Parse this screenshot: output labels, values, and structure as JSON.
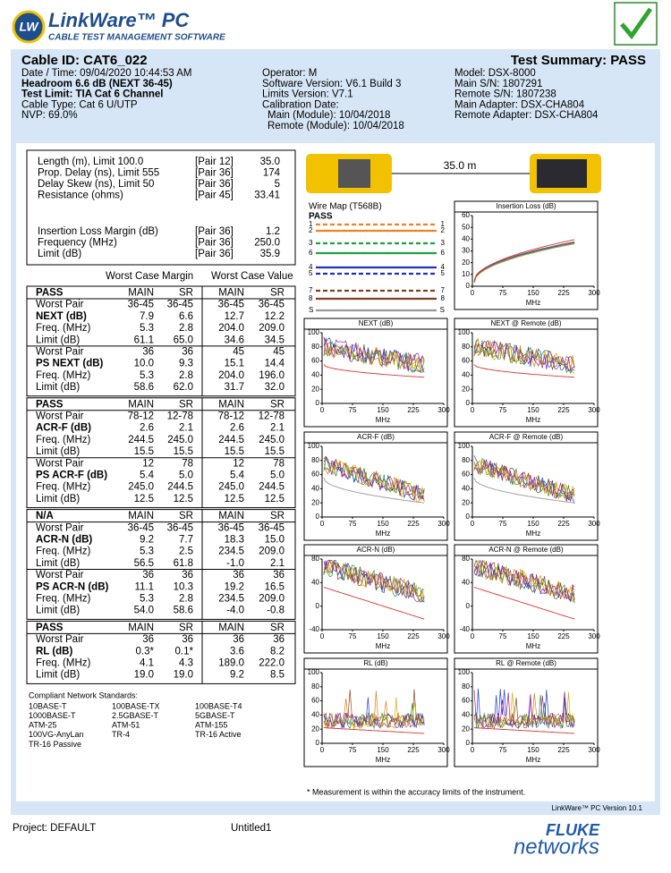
{
  "header": {
    "logo_badge": "LW",
    "logo": "LinkWare™ PC",
    "tagline": "CABLE TEST MANAGEMENT SOFTWARE"
  },
  "summary": {
    "cable_id": "Cable ID: CAT6_022",
    "result": "Test Summary: PASS",
    "col1": [
      "Date / Time: 09/04/2020  10:44:53 AM",
      "Headroom 6.6 dB (NEXT 36-45)",
      "Test Limit: TIA Cat 6 Channel",
      "Cable Type: Cat 6 U/UTP",
      "NVP: 69.0%"
    ],
    "col2": [
      "Operator: M",
      "Software Version: V6.1 Build 3",
      "Limits Version: V7.1",
      "Calibration Date:",
      "Main (Module): 10/04/2018",
      "Remote (Module): 10/04/2018"
    ],
    "col3": [
      "Model: DSX-8000",
      "Main S/N: 1807291",
      "Remote S/N: 1807238",
      "Main Adapter: DSX-CHA804",
      "Remote Adapter: DSX-CHA804"
    ]
  },
  "length_block": [
    [
      "Length (m), Limit 100.0",
      "[Pair 12]",
      "35.0"
    ],
    [
      "Prop. Delay (ns), Limit 555",
      "[Pair 36]",
      "174"
    ],
    [
      "Delay Skew (ns), Limit 50",
      "[Pair 36]",
      "5"
    ],
    [
      "Resistance (ohms)",
      "[Pair 45]",
      "33.41"
    ]
  ],
  "insertion_block": [
    [
      "Insertion Loss Margin (dB)",
      "[Pair 36]",
      "1.2"
    ],
    [
      "Frequency (MHz)",
      "[Pair 36]",
      "250.0"
    ],
    [
      "Limit (dB)",
      "[Pair 36]",
      "35.9"
    ]
  ],
  "worst_case_headers": [
    "Worst Case Margin",
    "Worst Case Value"
  ],
  "sections": [
    {
      "header": [
        "PASS",
        "MAIN",
        "SR",
        "MAIN",
        "SR"
      ],
      "rows": [
        [
          "Worst Pair",
          "36-45",
          "36-45",
          "36-45",
          "36-45"
        ],
        [
          "NEXT (dB)",
          "7.9",
          "6.6",
          "12.7",
          "12.2"
        ],
        [
          "Freq. (MHz)",
          "5.3",
          "2.8",
          "204.0",
          "209.0"
        ],
        [
          "Limit (dB)",
          "61.1",
          "65.0",
          "34.6",
          "34.5"
        ],
        [
          "Worst Pair",
          "36",
          "36",
          "45",
          "45"
        ],
        [
          "PS NEXT (dB)",
          "10.0",
          "9.3",
          "15.1",
          "14.4"
        ],
        [
          "Freq. (MHz)",
          "5.3",
          "2.8",
          "204.0",
          "196.0"
        ],
        [
          "Limit (dB)",
          "58.6",
          "62.0",
          "31.7",
          "32.0"
        ]
      ]
    },
    {
      "header": [
        "PASS",
        "MAIN",
        "SR",
        "MAIN",
        "SR"
      ],
      "rows": [
        [
          "Worst Pair",
          "78-12",
          "12-78",
          "78-12",
          "12-78"
        ],
        [
          "ACR-F (dB)",
          "2.6",
          "2.1",
          "2.6",
          "2.1"
        ],
        [
          "Freq. (MHz)",
          "244.5",
          "245.0",
          "244.5",
          "245.0"
        ],
        [
          "Limit (dB)",
          "15.5",
          "15.5",
          "15.5",
          "15.5"
        ],
        [
          "Worst Pair",
          "12",
          "78",
          "12",
          "78"
        ],
        [
          "PS ACR-F (dB)",
          "5.4",
          "5.0",
          "5.4",
          "5.0"
        ],
        [
          "Freq. (MHz)",
          "245.0",
          "244.5",
          "245.0",
          "244.5"
        ],
        [
          "Limit (dB)",
          "12.5",
          "12.5",
          "12.5",
          "12.5"
        ]
      ]
    },
    {
      "header": [
        "N/A",
        "MAIN",
        "SR",
        "MAIN",
        "SR"
      ],
      "rows": [
        [
          "Worst Pair",
          "36-45",
          "36-45",
          "36-45",
          "36-45"
        ],
        [
          "ACR-N (dB)",
          "9.2",
          "7.7",
          "18.3",
          "15.0"
        ],
        [
          "Freq. (MHz)",
          "5.3",
          "2.5",
          "234.5",
          "209.0"
        ],
        [
          "Limit (dB)",
          "56.5",
          "61.8",
          "-1.0",
          "2.1"
        ],
        [
          "Worst Pair",
          "36",
          "36",
          "36",
          "36"
        ],
        [
          "PS ACR-N (dB)",
          "11.1",
          "10.3",
          "19.2",
          "16.5"
        ],
        [
          "Freq. (MHz)",
          "5.3",
          "2.8",
          "234.5",
          "209.0"
        ],
        [
          "Limit (dB)",
          "54.0",
          "58.6",
          "-4.0",
          "-0.8"
        ]
      ]
    },
    {
      "header": [
        "PASS",
        "MAIN",
        "SR",
        "MAIN",
        "SR"
      ],
      "rows": [
        [
          "Worst Pair",
          "36",
          "36",
          "36",
          "36"
        ],
        [
          "RL (dB)",
          "0.3*",
          "0.1*",
          "3.6",
          "8.2"
        ],
        [
          "Freq. (MHz)",
          "4.1",
          "4.3",
          "189.0",
          "222.0"
        ],
        [
          "Limit (dB)",
          "19.0",
          "19.0",
          "9.2",
          "8.5"
        ]
      ]
    }
  ],
  "standards": {
    "title": "Compliant Network Standards:",
    "rows": [
      [
        "10BASE-T",
        "100BASE-TX",
        "100BASE-T4"
      ],
      [
        "1000BASE-T",
        "2.5GBASE-T",
        "5GBASE-T"
      ],
      [
        "ATM-25",
        "ATM-51",
        "ATM-155"
      ],
      [
        "100VG-AnyLan",
        "TR-4",
        "TR-16 Active"
      ],
      [
        "TR-16 Passive"
      ]
    ]
  },
  "wire_map": {
    "title": "Wire Map (T568B)",
    "result": "PASS",
    "length": "35.0 m",
    "pins": [
      "1",
      "2",
      "3",
      "6",
      "4",
      "5",
      "7",
      "8",
      "S"
    ]
  },
  "plots": [
    {
      "title": "Insertion Loss (dB)",
      "yticks": [
        0,
        10,
        20,
        30,
        40,
        50,
        60
      ],
      "xticks": [
        0,
        75,
        150,
        225,
        300
      ],
      "xlabel": "MHz"
    },
    {
      "title": "NEXT (dB)",
      "yticks": [
        0,
        20,
        40,
        60,
        80,
        100
      ],
      "xticks": [
        0,
        75,
        150,
        225,
        300
      ],
      "xlabel": "MHz"
    },
    {
      "title": "NEXT @ Remote (dB)",
      "yticks": [
        0,
        20,
        40,
        60,
        80,
        100
      ],
      "xticks": [
        0,
        75,
        150,
        225,
        300
      ],
      "xlabel": "MHz"
    },
    {
      "title": "ACR-F (dB)",
      "yticks": [
        0,
        20,
        40,
        60,
        80,
        100
      ],
      "xticks": [
        0,
        75,
        150,
        225,
        300
      ],
      "xlabel": "MHz"
    },
    {
      "title": "ACR-F @ Remote (dB)",
      "yticks": [
        0,
        20,
        40,
        60,
        80,
        100
      ],
      "xticks": [
        0,
        75,
        150,
        225,
        300
      ],
      "xlabel": "MHz"
    },
    {
      "title": "ACR-N (dB)",
      "yticks": [
        -40,
        0,
        40,
        80
      ],
      "xticks": [
        0,
        75,
        150,
        225,
        300
      ],
      "xlabel": "MHz"
    },
    {
      "title": "ACR-N @ Remote (dB)",
      "yticks": [
        -40,
        0,
        40,
        80
      ],
      "xticks": [
        0,
        75,
        150,
        225,
        300
      ],
      "xlabel": "MHz"
    },
    {
      "title": "RL (dB)",
      "yticks": [
        0,
        20,
        40,
        60,
        80,
        100
      ],
      "xticks": [
        0,
        75,
        150,
        225,
        300
      ],
      "xlabel": "MHz"
    },
    {
      "title": "RL @ Remote (dB)",
      "yticks": [
        0,
        20,
        40,
        60,
        80,
        100
      ],
      "xticks": [
        0,
        75,
        150,
        225,
        300
      ],
      "xlabel": "MHz"
    }
  ],
  "note": "* Measurement is within the accuracy limits of the instrument.",
  "version": "LinkWare™ PC Version 10.1",
  "footer": {
    "project": "Project: DEFAULT",
    "file": "Untitled1",
    "brand": "FLUKE",
    "brand2": "networks"
  }
}
